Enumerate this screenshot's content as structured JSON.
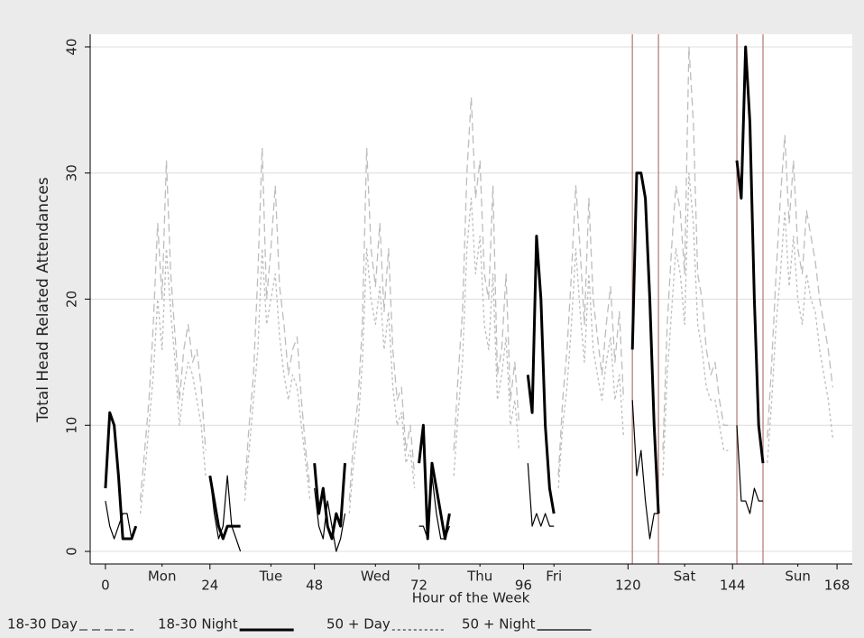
{
  "chart_data": {
    "type": "line",
    "y_label": "Total Head Related Attendances",
    "x_label": "Hour of the Week",
    "xlim": [
      -3.5,
      171.5
    ],
    "ylim": [
      -1,
      41
    ],
    "xticks": [
      0,
      24,
      48,
      72,
      96,
      120,
      144,
      168
    ],
    "yticks": [
      0,
      10,
      20,
      30,
      40
    ],
    "day_ticks": [
      {
        "value": 13,
        "label": "Mon"
      },
      {
        "value": 38,
        "label": "Tue"
      },
      {
        "value": 62,
        "label": "Wed"
      },
      {
        "value": 86,
        "label": "Thu"
      },
      {
        "value": 103,
        "label": "Fri"
      },
      {
        "value": 133,
        "label": "Sat"
      },
      {
        "value": 159,
        "label": "Sun"
      }
    ],
    "reference_lines": [
      121,
      127,
      145,
      151
    ],
    "reference_color": "#b88080",
    "grid": true,
    "legend": "bottom",
    "x": [
      0,
      1,
      2,
      3,
      4,
      5,
      6,
      7,
      8,
      9,
      10,
      11,
      12,
      13,
      14,
      15,
      16,
      17,
      18,
      19,
      20,
      21,
      22,
      23,
      24,
      25,
      26,
      27,
      28,
      29,
      30,
      31,
      32,
      33,
      34,
      35,
      36,
      37,
      38,
      39,
      40,
      41,
      42,
      43,
      44,
      45,
      46,
      47,
      48,
      49,
      50,
      51,
      52,
      53,
      54,
      55,
      56,
      57,
      58,
      59,
      60,
      61,
      62,
      63,
      64,
      65,
      66,
      67,
      68,
      69,
      70,
      71,
      72,
      73,
      74,
      75,
      76,
      77,
      78,
      79,
      80,
      81,
      82,
      83,
      84,
      85,
      86,
      87,
      88,
      89,
      90,
      91,
      92,
      93,
      94,
      95,
      96,
      97,
      98,
      99,
      100,
      101,
      102,
      103,
      104,
      105,
      106,
      107,
      108,
      109,
      110,
      111,
      112,
      113,
      114,
      115,
      116,
      117,
      118,
      119,
      120,
      121,
      122,
      123,
      124,
      125,
      126,
      127,
      128,
      129,
      130,
      131,
      132,
      133,
      134,
      135,
      136,
      137,
      138,
      139,
      140,
      141,
      142,
      143,
      144,
      145,
      146,
      147,
      148,
      149,
      150,
      151,
      152,
      153,
      154,
      155,
      156,
      157,
      158,
      159,
      160,
      161,
      162,
      163,
      164,
      165,
      166,
      167
    ],
    "series": [
      {
        "name": "18-30 Day",
        "color": "#bdbdbd",
        "style": "long-dash",
        "width": 1.3,
        "values": [
          null,
          null,
          null,
          null,
          null,
          null,
          null,
          null,
          4,
          8,
          12,
          18,
          26,
          20,
          31,
          22,
          17,
          12,
          16,
          18,
          15,
          16,
          13,
          8,
          null,
          null,
          null,
          null,
          null,
          null,
          null,
          null,
          5,
          10,
          14,
          22,
          32,
          20,
          24,
          29,
          21,
          18,
          14,
          16,
          17,
          12,
          8,
          5,
          null,
          null,
          null,
          null,
          null,
          null,
          null,
          null,
          4,
          9,
          12,
          18,
          32,
          24,
          21,
          26,
          19,
          24,
          16,
          12,
          13,
          8,
          10,
          6,
          null,
          null,
          null,
          null,
          null,
          null,
          null,
          null,
          8,
          14,
          19,
          30,
          36,
          28,
          31,
          22,
          20,
          29,
          14,
          16,
          22,
          12,
          15,
          10,
          null,
          null,
          null,
          null,
          null,
          null,
          null,
          null,
          6,
          12,
          16,
          22,
          29,
          24,
          18,
          28,
          20,
          17,
          14,
          18,
          21,
          15,
          19,
          12,
          null,
          null,
          null,
          null,
          null,
          null,
          null,
          null,
          8,
          18,
          24,
          29,
          27,
          22,
          40,
          34,
          22,
          20,
          16,
          14,
          15,
          12,
          10,
          10,
          null,
          null,
          null,
          null,
          null,
          null,
          null,
          null,
          9,
          15,
          22,
          28,
          33,
          26,
          31,
          24,
          22,
          27,
          25,
          23,
          20,
          18,
          16,
          13
        ]
      },
      {
        "name": "18-30 Night",
        "color": "#000000",
        "style": "solid",
        "width": 3,
        "values": [
          5,
          11,
          10,
          6,
          1,
          1,
          1,
          2,
          null,
          null,
          null,
          null,
          null,
          null,
          null,
          null,
          null,
          null,
          null,
          null,
          null,
          null,
          null,
          null,
          6,
          4,
          2,
          1,
          2,
          2,
          2,
          2,
          null,
          null,
          null,
          null,
          null,
          null,
          null,
          null,
          null,
          null,
          null,
          null,
          null,
          null,
          null,
          null,
          7,
          3,
          5,
          2,
          1,
          3,
          2,
          7,
          null,
          null,
          null,
          null,
          null,
          null,
          null,
          null,
          null,
          null,
          null,
          null,
          null,
          null,
          null,
          null,
          7,
          10,
          1,
          7,
          5,
          3,
          1,
          3,
          null,
          null,
          null,
          null,
          null,
          null,
          null,
          null,
          null,
          null,
          null,
          null,
          null,
          null,
          null,
          null,
          null,
          14,
          11,
          25,
          20,
          10,
          5,
          3,
          null,
          null,
          null,
          null,
          null,
          null,
          null,
          null,
          null,
          null,
          null,
          null,
          null,
          null,
          null,
          null,
          null,
          16,
          30,
          30,
          28,
          20,
          10,
          3,
          null,
          null,
          null,
          null,
          null,
          null,
          null,
          null,
          null,
          null,
          null,
          null,
          null,
          null,
          null,
          null,
          null,
          31,
          28,
          40,
          34,
          20,
          10,
          7,
          null,
          null,
          null,
          null,
          null,
          null,
          null,
          null,
          null,
          null,
          null,
          null,
          null,
          null,
          null,
          null
        ]
      },
      {
        "name": "50 + Day",
        "color": "#bdbdbd",
        "style": "short-dash",
        "width": 1.3,
        "values": [
          null,
          null,
          null,
          null,
          null,
          null,
          null,
          null,
          3,
          6,
          10,
          14,
          20,
          16,
          24,
          19,
          15,
          10,
          13,
          15,
          14,
          12,
          10,
          6,
          null,
          null,
          null,
          null,
          null,
          null,
          null,
          null,
          4,
          8,
          12,
          16,
          24,
          18,
          20,
          22,
          17,
          14,
          12,
          14,
          13,
          10,
          7,
          4,
          null,
          null,
          null,
          null,
          null,
          null,
          null,
          null,
          3,
          7,
          10,
          15,
          24,
          20,
          18,
          21,
          16,
          19,
          13,
          10,
          11,
          7,
          8,
          5,
          null,
          null,
          null,
          null,
          null,
          null,
          null,
          null,
          6,
          11,
          15,
          24,
          28,
          22,
          25,
          18,
          16,
          22,
          12,
          14,
          17,
          10,
          12,
          8,
          null,
          null,
          null,
          null,
          null,
          null,
          null,
          null,
          5,
          10,
          13,
          18,
          24,
          19,
          15,
          22,
          16,
          14,
          12,
          15,
          17,
          12,
          14,
          9,
          null,
          null,
          null,
          null,
          null,
          null,
          null,
          null,
          6,
          14,
          19,
          24,
          22,
          18,
          30,
          26,
          18,
          16,
          13,
          12,
          12,
          10,
          8,
          8,
          null,
          null,
          null,
          null,
          null,
          null,
          null,
          null,
          7,
          12,
          18,
          22,
          27,
          21,
          25,
          20,
          18,
          22,
          20,
          19,
          16,
          14,
          12,
          9
        ]
      },
      {
        "name": "50 + Night",
        "color": "#000000",
        "style": "solid",
        "width": 1.2,
        "values": [
          4,
          2,
          1,
          2,
          3,
          3,
          1,
          2,
          null,
          null,
          null,
          null,
          null,
          null,
          null,
          null,
          null,
          null,
          null,
          null,
          null,
          null,
          null,
          null,
          6,
          3,
          1,
          2,
          6,
          2,
          1,
          0,
          null,
          null,
          null,
          null,
          null,
          null,
          null,
          null,
          null,
          null,
          null,
          null,
          null,
          null,
          null,
          null,
          5,
          2,
          1,
          4,
          2,
          0,
          1,
          3,
          null,
          null,
          null,
          null,
          null,
          null,
          null,
          null,
          null,
          null,
          null,
          null,
          null,
          null,
          null,
          null,
          2,
          2,
          1,
          6,
          3,
          1,
          1,
          2,
          null,
          null,
          null,
          null,
          null,
          null,
          null,
          null,
          null,
          null,
          null,
          null,
          null,
          null,
          null,
          null,
          null,
          7,
          2,
          3,
          2,
          3,
          2,
          2,
          null,
          null,
          null,
          null,
          null,
          null,
          null,
          null,
          null,
          null,
          null,
          null,
          null,
          null,
          null,
          null,
          null,
          12,
          6,
          8,
          4,
          1,
          3,
          3,
          null,
          null,
          null,
          null,
          null,
          null,
          null,
          null,
          null,
          null,
          null,
          null,
          null,
          null,
          null,
          null,
          null,
          10,
          4,
          4,
          3,
          5,
          4,
          4,
          null,
          null,
          null,
          null,
          null,
          null,
          null,
          null,
          null,
          null,
          null,
          null,
          null,
          null,
          null,
          null
        ]
      }
    ]
  }
}
